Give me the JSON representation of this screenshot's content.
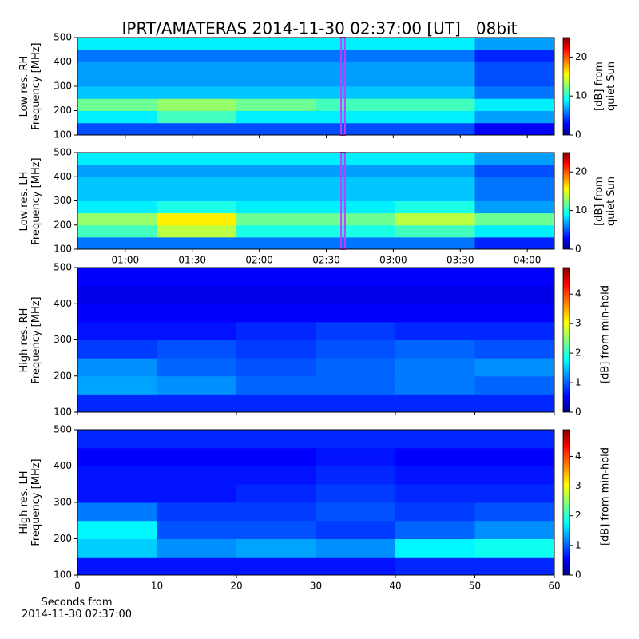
{
  "title": "IPRT/AMATERAS 2014-11-30 02:37:00 [UT]   08bit",
  "chart_data": [
    {
      "type": "heatmap",
      "ylabel": "Low res. RH\nFrequency [MHz]",
      "colorbar_label": "[dB] from\nquiet Sun",
      "colormap": "jet",
      "xlim": [
        38.6,
        252.1
      ],
      "ylim": [
        100,
        500
      ],
      "yticks": [
        100,
        200,
        300,
        400,
        500
      ],
      "clim": [
        0,
        25
      ],
      "cticks": [
        0,
        10,
        20
      ],
      "marker_x": [
        157,
        158
      ],
      "marker_color": "#c040ff",
      "xbins": [
        38.6,
        74.2,
        109.8,
        145.3,
        180.9,
        216.5,
        252.1
      ],
      "ybins": [
        100,
        150,
        200,
        250,
        300,
        350,
        400,
        450,
        500
      ],
      "values": [
        [
          5,
          5,
          5,
          5,
          5,
          3
        ],
        [
          9,
          11,
          9,
          9,
          9,
          7
        ],
        [
          12,
          13,
          12,
          11,
          11,
          9
        ],
        [
          8,
          8,
          8,
          8,
          8,
          6
        ],
        [
          7,
          7,
          7,
          7,
          7,
          5
        ],
        [
          7,
          7,
          7,
          7,
          7,
          5
        ],
        [
          6,
          6,
          6,
          6,
          6,
          4
        ],
        [
          9,
          9,
          9,
          9,
          9,
          7
        ]
      ]
    },
    {
      "type": "heatmap",
      "ylabel": "Low res. LH\nFrequency [MHz]",
      "colorbar_label": "[dB] from\nquiet Sun",
      "colormap": "jet",
      "xlim": [
        38.6,
        252.1
      ],
      "ylim": [
        100,
        500
      ],
      "yticks": [
        100,
        200,
        300,
        400,
        500
      ],
      "xticks": [
        {
          "value": 60,
          "label": "01:00"
        },
        {
          "value": 90,
          "label": "01:30"
        },
        {
          "value": 120,
          "label": "02:00"
        },
        {
          "value": 150,
          "label": "02:30"
        },
        {
          "value": 180,
          "label": "03:00"
        },
        {
          "value": 210,
          "label": "03:30"
        },
        {
          "value": 240,
          "label": "04:00"
        }
      ],
      "clim": [
        0,
        25
      ],
      "cticks": [
        0,
        10,
        20
      ],
      "marker_x": [
        157,
        158
      ],
      "marker_color": "#c040ff",
      "xbins": [
        38.6,
        74.2,
        109.8,
        145.3,
        180.9,
        216.5,
        252.1
      ],
      "ybins": [
        100,
        150,
        200,
        250,
        300,
        350,
        400,
        450,
        500
      ],
      "values": [
        [
          6,
          6,
          6,
          6,
          6,
          4
        ],
        [
          11,
          14,
          10,
          10,
          11,
          9
        ],
        [
          13,
          16,
          12,
          12,
          14,
          12
        ],
        [
          9,
          10,
          9,
          9,
          10,
          7
        ],
        [
          8,
          8,
          8,
          8,
          8,
          6
        ],
        [
          8,
          8,
          8,
          8,
          8,
          6
        ],
        [
          7,
          7,
          7,
          7,
          7,
          5
        ],
        [
          9,
          9,
          9,
          9,
          9,
          7
        ]
      ]
    },
    {
      "type": "heatmap",
      "ylabel": "High res. RH\nFrequency [MHz]",
      "colorbar_label": "[dB] from min-hold",
      "colormap": "jet",
      "xlim": [
        0,
        60
      ],
      "ylim": [
        100,
        500
      ],
      "yticks": [
        100,
        200,
        300,
        400,
        500
      ],
      "clim": [
        0,
        4.9
      ],
      "cticks": [
        0,
        1,
        2,
        3,
        4
      ],
      "xbins": [
        0,
        10,
        20,
        30,
        40,
        50,
        60
      ],
      "ybins": [
        100,
        150,
        200,
        250,
        300,
        350,
        400,
        450,
        500
      ],
      "values": [
        [
          0.8,
          0.8,
          0.8,
          0.8,
          0.8,
          0.8
        ],
        [
          1.4,
          1.3,
          1.1,
          1.1,
          1.2,
          1.1
        ],
        [
          1.3,
          1.1,
          1.0,
          1.1,
          1.2,
          1.3
        ],
        [
          0.9,
          1.0,
          0.9,
          1.0,
          1.1,
          1.0
        ],
        [
          0.7,
          0.7,
          0.8,
          0.9,
          0.8,
          0.8
        ],
        [
          0.6,
          0.6,
          0.6,
          0.6,
          0.6,
          0.6
        ],
        [
          0.5,
          0.5,
          0.5,
          0.5,
          0.5,
          0.5
        ],
        [
          0.6,
          0.6,
          0.6,
          0.6,
          0.6,
          0.6
        ]
      ]
    },
    {
      "type": "heatmap",
      "ylabel": "High res. LH\nFrequency [MHz]",
      "colorbar_label": "[dB] from min-hold",
      "colormap": "jet",
      "xlabel": "Seconds from\n2014-11-30 02:37:00",
      "xlim": [
        0,
        60
      ],
      "ylim": [
        100,
        500
      ],
      "yticks": [
        100,
        200,
        300,
        400,
        500
      ],
      "xticks": [
        0,
        10,
        20,
        30,
        40,
        50,
        60
      ],
      "clim": [
        0,
        4.9
      ],
      "cticks": [
        0,
        1,
        2,
        3,
        4
      ],
      "xbins": [
        0,
        10,
        20,
        30,
        40,
        50,
        60
      ],
      "ybins": [
        100,
        150,
        200,
        250,
        300,
        350,
        400,
        450,
        500
      ],
      "values": [
        [
          0.7,
          0.7,
          0.7,
          0.7,
          0.8,
          0.8
        ],
        [
          1.6,
          1.3,
          1.4,
          1.3,
          1.8,
          1.9
        ],
        [
          1.8,
          1.0,
          1.0,
          0.9,
          1.1,
          1.3
        ],
        [
          1.2,
          0.9,
          0.9,
          1.0,
          0.9,
          1.0
        ],
        [
          0.7,
          0.7,
          0.8,
          0.9,
          0.8,
          0.8
        ],
        [
          0.7,
          0.7,
          0.7,
          0.8,
          0.7,
          0.7
        ],
        [
          0.6,
          0.6,
          0.6,
          0.7,
          0.6,
          0.6
        ],
        [
          0.8,
          0.8,
          0.8,
          0.8,
          0.8,
          0.8
        ]
      ]
    }
  ]
}
